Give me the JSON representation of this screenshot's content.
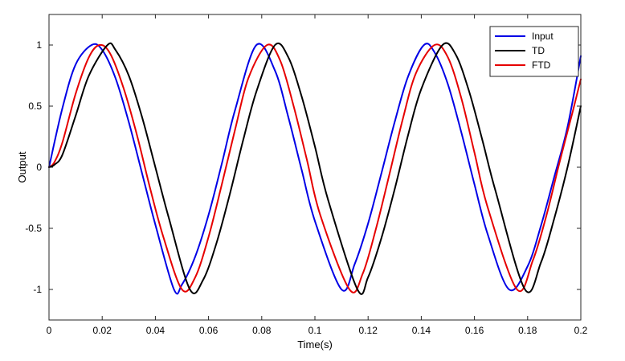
{
  "chart_data": {
    "type": "line",
    "title": "",
    "xlabel": "Time(s)",
    "ylabel": "Output",
    "xlim": [
      0,
      0.2
    ],
    "ylim": [
      -1.25,
      1.25
    ],
    "grid": false,
    "legend_position": "top-right",
    "x_ticks": [
      "0",
      "0.02",
      "0.04",
      "0.06",
      "0.08",
      "0.1",
      "0.12",
      "0.14",
      "0.16",
      "0.18",
      "0.2"
    ],
    "y_ticks": [
      "-1",
      "-0.5",
      "0",
      "0.5",
      "1"
    ],
    "series": [
      {
        "name": "Input",
        "color": "#0000e6",
        "x": [
          0,
          0.005,
          0.01,
          0.016,
          0.02,
          0.025,
          0.03,
          0.035,
          0.04,
          0.047,
          0.05,
          0.055,
          0.06,
          0.065,
          0.07,
          0.078,
          0.085,
          0.09,
          0.095,
          0.1,
          0.11,
          0.115,
          0.12,
          0.125,
          0.13,
          0.135,
          0.141,
          0.145,
          0.15,
          0.155,
          0.16,
          0.165,
          0.173,
          0.18,
          0.185,
          0.19,
          0.195,
          0.2
        ],
        "values": [
          0,
          0.48,
          0.84,
          1.0,
          0.96,
          0.73,
          0.37,
          -0.05,
          -0.47,
          -1.0,
          -0.96,
          -0.73,
          -0.39,
          0.03,
          0.47,
          1.0,
          0.79,
          0.41,
          -0.02,
          -0.44,
          -1.0,
          -0.79,
          -0.46,
          -0.05,
          0.37,
          0.74,
          1.0,
          0.94,
          0.68,
          0.29,
          -0.14,
          -0.55,
          -1.0,
          -0.81,
          -0.48,
          -0.08,
          0.33,
          0.91
        ]
      },
      {
        "name": "TD",
        "color": "#000000",
        "x": [
          0,
          0.002,
          0.005,
          0.01,
          0.015,
          0.022,
          0.025,
          0.03,
          0.035,
          0.04,
          0.045,
          0.053,
          0.058,
          0.063,
          0.068,
          0.073,
          0.078,
          0.085,
          0.09,
          0.095,
          0.1,
          0.105,
          0.116,
          0.12,
          0.125,
          0.13,
          0.135,
          0.14,
          0.148,
          0.153,
          0.158,
          0.163,
          0.168,
          0.179,
          0.185,
          0.19,
          0.195,
          0.2
        ],
        "values": [
          0,
          0.02,
          0.1,
          0.42,
          0.75,
          1.0,
          0.96,
          0.75,
          0.41,
          0.0,
          -0.41,
          -1.0,
          -0.92,
          -0.62,
          -0.22,
          0.22,
          0.62,
          1.0,
          0.9,
          0.58,
          0.17,
          -0.27,
          -1.0,
          -0.9,
          -0.58,
          -0.18,
          0.26,
          0.64,
          1.0,
          0.92,
          0.62,
          0.22,
          -0.2,
          -1.0,
          -0.78,
          -0.42,
          0.0,
          0.5
        ]
      },
      {
        "name": "FTD",
        "color": "#e60000",
        "x": [
          0,
          0.002,
          0.005,
          0.01,
          0.015,
          0.019,
          0.023,
          0.028,
          0.033,
          0.038,
          0.043,
          0.05,
          0.055,
          0.06,
          0.065,
          0.07,
          0.075,
          0.082,
          0.087,
          0.092,
          0.097,
          0.102,
          0.113,
          0.118,
          0.123,
          0.128,
          0.133,
          0.138,
          0.145,
          0.15,
          0.155,
          0.16,
          0.165,
          0.176,
          0.182,
          0.187,
          0.192,
          0.197,
          0.2
        ],
        "values": [
          0,
          0.04,
          0.2,
          0.6,
          0.9,
          1.0,
          0.93,
          0.65,
          0.27,
          -0.17,
          -0.57,
          -1.0,
          -0.9,
          -0.57,
          -0.14,
          0.31,
          0.73,
          1.0,
          0.87,
          0.5,
          0.06,
          -0.39,
          -1.0,
          -0.87,
          -0.5,
          -0.06,
          0.39,
          0.77,
          1.0,
          0.9,
          0.57,
          0.12,
          -0.33,
          -1.0,
          -0.76,
          -0.4,
          0.04,
          0.46,
          0.72
        ]
      }
    ]
  }
}
